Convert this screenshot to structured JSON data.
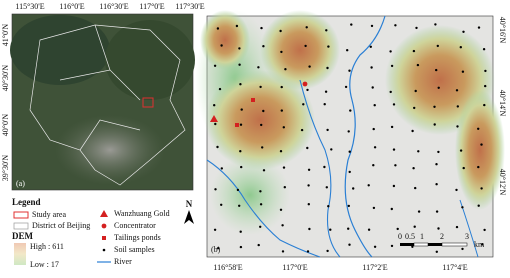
{
  "panel_a": {
    "label": "(a)",
    "top_axis": [
      "115°30'E",
      "116°0'E",
      "116°30'E",
      "117°0'E",
      "117°30'E"
    ],
    "left_axis": [
      "41°0'N",
      "40°30'N",
      "40°0'N",
      "39°30'N"
    ]
  },
  "panel_b": {
    "label": "(b)",
    "bottom_axis": [
      "116°58'E",
      "117°0'E",
      "117°2'E",
      "117°4'E"
    ],
    "right_axis": [
      "40°16'N",
      "40°14'N",
      "40°12'N"
    ],
    "scale": [
      "0",
      "0.5",
      "1",
      "2",
      "3",
      "km"
    ]
  },
  "legend": {
    "title": "Legend",
    "study_area": "Study area",
    "district": "District of Beijing",
    "dem": "DEM",
    "high": "High : 611",
    "low": "Low : 17",
    "wanzhuang": "Wanzhuang Gold",
    "concentrator": "Concentrator",
    "tailings": "Tailings ponds",
    "soil": "Soil samples",
    "river": "River",
    "north": "N"
  }
}
